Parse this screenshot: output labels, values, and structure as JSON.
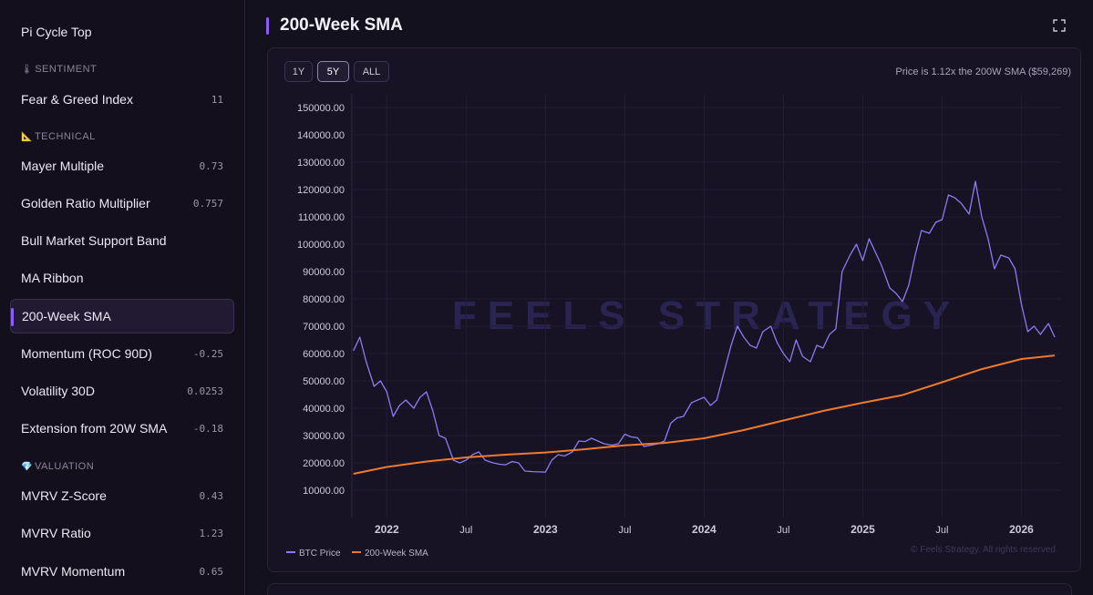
{
  "sidebar": {
    "top_item": {
      "label": "Pi Cycle Top"
    },
    "sections": [
      {
        "id": "sentiment",
        "icon": "thermometer-icon",
        "glyph": "🌡",
        "label": "SENTIMENT",
        "items": [
          {
            "label": "Fear & Greed Index",
            "value": "11"
          }
        ]
      },
      {
        "id": "technical",
        "icon": "ruler-triangle-icon",
        "glyph": "📐",
        "label": "TECHNICAL",
        "items": [
          {
            "label": "Mayer Multiple",
            "value": "0.73"
          },
          {
            "label": "Golden Ratio Multiplier",
            "value": "0.757"
          },
          {
            "label": "Bull Market Support Band",
            "value": ""
          },
          {
            "label": "MA Ribbon",
            "value": ""
          },
          {
            "label": "200-Week SMA",
            "value": "",
            "active": true
          },
          {
            "label": "Momentum (ROC 90D)",
            "value": "-0.25"
          },
          {
            "label": "Volatility 30D",
            "value": "0.0253"
          },
          {
            "label": "Extension from 20W SMA",
            "value": "-0.18"
          }
        ]
      },
      {
        "id": "valuation",
        "icon": "diamond-icon",
        "glyph": "💎",
        "label": "VALUATION",
        "items": [
          {
            "label": "MVRV Z-Score",
            "value": "0.43"
          },
          {
            "label": "MVRV Ratio",
            "value": "1.23"
          },
          {
            "label": "MVRV Momentum",
            "value": "0.65"
          }
        ]
      }
    ]
  },
  "header": {
    "title": "200-Week SMA",
    "expand_icon": "expand-icon"
  },
  "controls": {
    "ranges": [
      "1Y",
      "5Y",
      "ALL"
    ],
    "selected": "5Y"
  },
  "price_info": "Price is 1.12x the 200W SMA ($59,269)",
  "watermark": "FEELS STRATEGY",
  "copyright": "© Feels Strategy. All rights reserved",
  "colors": {
    "btc_price": "#8b7cf0",
    "sma": "#f07a2a",
    "accent": "#8b5cf6",
    "background": "#14111f"
  },
  "chart_data": {
    "type": "line",
    "title": "200-Week SMA",
    "xlabel": "",
    "ylabel": "",
    "x_ticks": [
      "2022",
      "Jul",
      "2023",
      "Jul",
      "2024",
      "Jul",
      "2025",
      "Jul",
      "2026"
    ],
    "y_ticks": [
      "10000.00",
      "20000.00",
      "30000.00",
      "40000.00",
      "50000.00",
      "60000.00",
      "70000.00",
      "80000.00",
      "90000.00",
      "100000.00",
      "110000.00",
      "120000.00",
      "130000.00",
      "140000.00",
      "150000.00"
    ],
    "ylim": [
      0,
      155000
    ],
    "xlim": [
      2021.78,
      2026.25
    ],
    "legend": [
      {
        "name": "BTC Price",
        "color": "#8b7cf0"
      },
      {
        "name": "200-Week SMA",
        "color": "#f07a2a"
      }
    ],
    "legend_position": "bottom-left",
    "grid": true,
    "series": [
      {
        "name": "BTC Price",
        "color": "#8b7cf0",
        "x": [
          2021.79,
          2021.83,
          2021.87,
          2021.92,
          2021.96,
          2022.0,
          2022.04,
          2022.08,
          2022.12,
          2022.17,
          2022.21,
          2022.25,
          2022.29,
          2022.33,
          2022.37,
          2022.42,
          2022.46,
          2022.5,
          2022.54,
          2022.58,
          2022.62,
          2022.67,
          2022.71,
          2022.75,
          2022.79,
          2022.83,
          2022.87,
          2022.92,
          2022.96,
          2023.0,
          2023.04,
          2023.08,
          2023.12,
          2023.17,
          2023.21,
          2023.25,
          2023.29,
          2023.33,
          2023.37,
          2023.42,
          2023.46,
          2023.5,
          2023.54,
          2023.58,
          2023.62,
          2023.67,
          2023.71,
          2023.75,
          2023.79,
          2023.83,
          2023.87,
          2023.92,
          2023.96,
          2024.0,
          2024.04,
          2024.08,
          2024.12,
          2024.17,
          2024.21,
          2024.25,
          2024.29,
          2024.33,
          2024.37,
          2024.42,
          2024.46,
          2024.5,
          2024.54,
          2024.58,
          2024.62,
          2024.67,
          2024.71,
          2024.75,
          2024.79,
          2024.83,
          2024.87,
          2024.92,
          2024.96,
          2025.0,
          2025.04,
          2025.08,
          2025.12,
          2025.17,
          2025.21,
          2025.25,
          2025.29,
          2025.33,
          2025.37,
          2025.42,
          2025.46,
          2025.5,
          2025.54,
          2025.58,
          2025.62,
          2025.67,
          2025.71,
          2025.75,
          2025.79,
          2025.83,
          2025.87,
          2025.92,
          2025.96,
          2026.0,
          2026.04,
          2026.08,
          2026.12,
          2026.17,
          2026.21
        ],
        "y": [
          61000,
          66000,
          57000,
          48000,
          50000,
          46000,
          37000,
          41000,
          43000,
          40000,
          44000,
          46000,
          39000,
          30000,
          29000,
          21000,
          20000,
          21000,
          23000,
          24000,
          21000,
          20000,
          19500,
          19300,
          20500,
          20000,
          17000,
          16800,
          16700,
          16600,
          21000,
          23000,
          22500,
          24000,
          28000,
          27800,
          29000,
          28000,
          27000,
          26500,
          27000,
          30500,
          29500,
          29200,
          26000,
          26500,
          27000,
          28000,
          34500,
          36500,
          37000,
          42000,
          43000,
          44000,
          41000,
          43000,
          52000,
          63000,
          70000,
          66000,
          63000,
          62000,
          68000,
          70000,
          64000,
          60000,
          57000,
          65000,
          59000,
          57000,
          63000,
          62000,
          67000,
          69000,
          90000,
          96000,
          100000,
          94000,
          102000,
          97000,
          92000,
          84000,
          82000,
          79000,
          85000,
          96000,
          105000,
          104000,
          108000,
          109000,
          118000,
          117000,
          115000,
          111000,
          123000,
          110000,
          102000,
          91000,
          96000,
          95000,
          91000,
          78000,
          68000,
          70000,
          67000,
          71000,
          66000
        ]
      },
      {
        "name": "200-Week SMA",
        "color": "#f07a2a",
        "x": [
          2021.79,
          2022.0,
          2022.25,
          2022.5,
          2022.75,
          2023.0,
          2023.25,
          2023.5,
          2023.75,
          2024.0,
          2024.25,
          2024.5,
          2024.75,
          2025.0,
          2025.25,
          2025.5,
          2025.75,
          2026.0,
          2026.21
        ],
        "y": [
          16000,
          18500,
          20500,
          22000,
          23000,
          23800,
          25000,
          26400,
          27300,
          29000,
          32000,
          35500,
          39000,
          42000,
          44800,
          49500,
          54300,
          58000,
          59300
        ]
      }
    ]
  }
}
